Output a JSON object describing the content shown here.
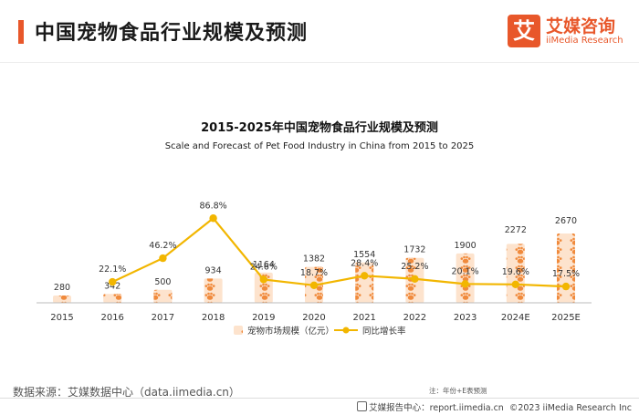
{
  "header": {
    "title": "中国宠物食品行业规模及预测",
    "logo_mark": "艾",
    "logo_cn": "艾媒咨询",
    "logo_en": "iiMedia Research"
  },
  "chart_data": {
    "type": "bar",
    "title": "2015-2025年中国宠物食品行业规模及预测",
    "subtitle": "Scale and Forecast of Pet Food Industry in China from 2015 to 2025",
    "categories": [
      "2015",
      "2016",
      "2017",
      "2018",
      "2019",
      "2020",
      "2021",
      "2022",
      "2023",
      "2024E",
      "2025E"
    ],
    "series": [
      {
        "name": "宠物市场规模（亿元）",
        "type": "bar",
        "values": [
          280,
          342,
          500,
          934,
          1164,
          1382,
          1554,
          1732,
          1900,
          2272,
          2670
        ],
        "labels": [
          "280",
          "342",
          "500",
          "934",
          "1164",
          "1382",
          "1554",
          "1732",
          "1900",
          "2272",
          "2670"
        ],
        "color": "#f08a3c"
      },
      {
        "name": "同比增长率",
        "type": "line",
        "values": [
          null,
          22.1,
          46.2,
          86.8,
          24.6,
          18.7,
          28.4,
          25.2,
          20.1,
          19.6,
          17.5
        ],
        "labels": [
          "",
          "22.1%",
          "46.2%",
          "86.8%",
          "24.6%",
          "18.7%",
          "28.4%",
          "25.2%",
          "20.1%",
          "19.6%",
          "17.5%"
        ],
        "color": "#f2b600"
      }
    ],
    "legend_position": "bottom-center",
    "grid": false
  },
  "footer": {
    "source": "数据来源：艾媒数据中心（data.iimedia.cn）",
    "note": "注：年份+E表预测",
    "report_site": "艾媒报告中心：report.iimedia.cn",
    "copyright": "©2023  iiMedia Research  Inc"
  }
}
